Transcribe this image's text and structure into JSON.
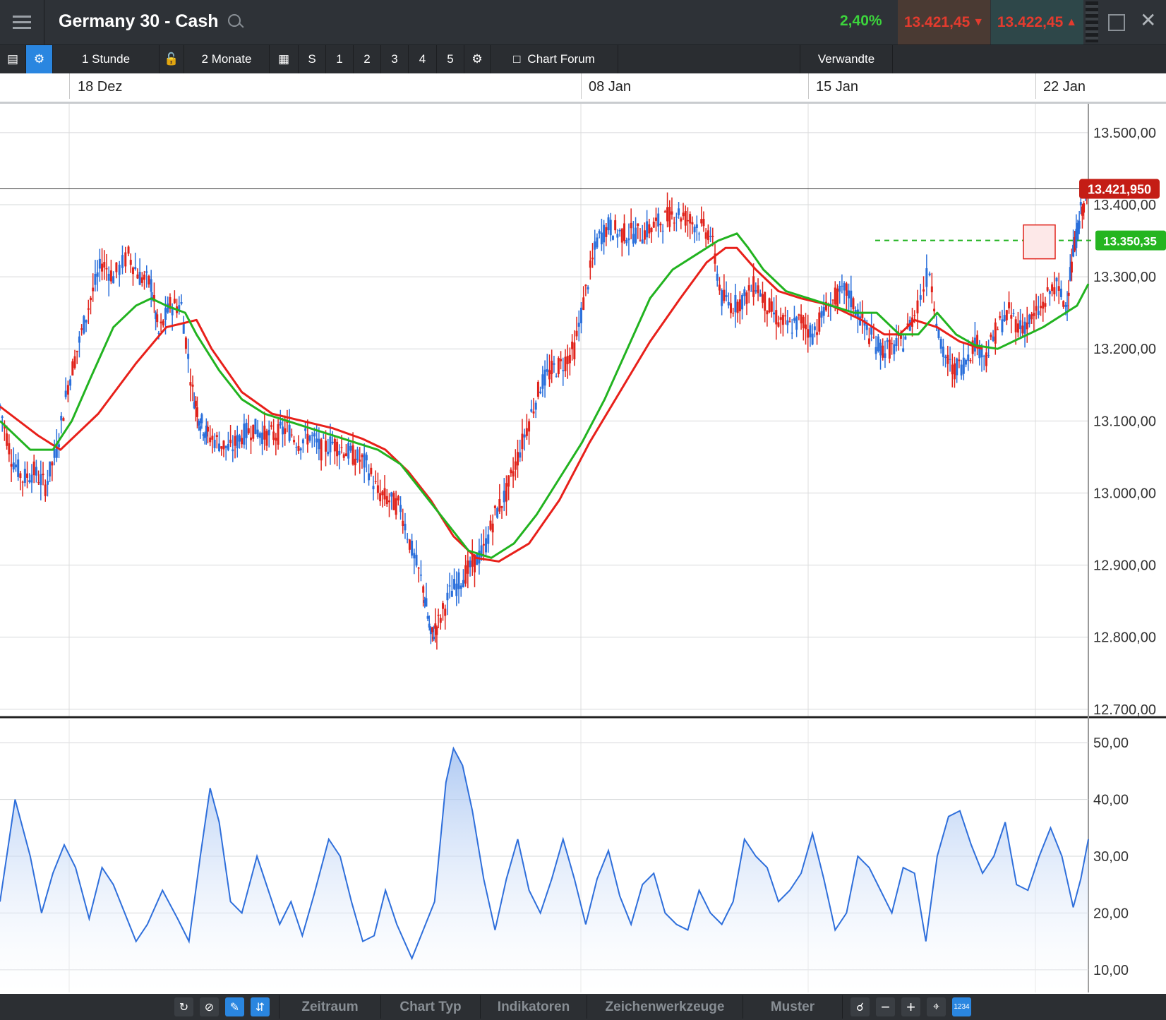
{
  "header": {
    "title": "Germany 30 - Cash",
    "change": "2,40%",
    "bid": "13.421,45",
    "ask": "13.422,45",
    "icons": [
      "menu-icon",
      "search-icon",
      "detach-icon",
      "close-icon"
    ]
  },
  "toolbar": {
    "interval": "1 Stunde",
    "range": "2 Monate",
    "s": "S",
    "n1": "1",
    "n2": "2",
    "n3": "3",
    "n4": "4",
    "n5": "5",
    "forum": "Chart Forum",
    "related": "Verwandte"
  },
  "bottom_bar": {
    "zeitraum": "Zeitraum",
    "charttyp": "Chart Typ",
    "indikatoren": "Indikatoren",
    "zeichen": "Zeichenwerkzeuge",
    "muster": "Muster",
    "numbers": "1234"
  },
  "colors": {
    "up": "#2a6fdb",
    "down": "#e0231b",
    "ma_green": "#22b320",
    "ma_red": "#e8201a",
    "rsi": "#2f6fdb"
  },
  "chart_data": [
    {
      "type": "line",
      "title": "Germany 30 - Cash",
      "x_date_labels": [
        "18 Dez",
        "08 Jan",
        "15 Jan",
        "22 Jan"
      ],
      "yticks": [
        "13.500,00",
        "13.400,00",
        "13.300,00",
        "13.200,00",
        "13.100,00",
        "13.000,00",
        "12.900,00",
        "12.800,00",
        "12.700,00"
      ],
      "ylim": [
        12690,
        13540
      ],
      "last_price_label": "13.421,950",
      "last_price": 13421.95,
      "level_label": "13.350,35",
      "level": 13350.35,
      "price_path": [
        [
          0,
          13120
        ],
        [
          15,
          13050
        ],
        [
          30,
          13020
        ],
        [
          45,
          13030
        ],
        [
          60,
          13010
        ],
        [
          75,
          13060
        ],
        [
          90,
          13150
        ],
        [
          105,
          13210
        ],
        [
          120,
          13270
        ],
        [
          135,
          13320
        ],
        [
          150,
          13300
        ],
        [
          170,
          13330
        ],
        [
          185,
          13300
        ],
        [
          200,
          13290
        ],
        [
          210,
          13220
        ],
        [
          225,
          13260
        ],
        [
          240,
          13260
        ],
        [
          255,
          13140
        ],
        [
          265,
          13100
        ],
        [
          275,
          13080
        ],
        [
          290,
          13070
        ],
        [
          305,
          13060
        ],
        [
          320,
          13080
        ],
        [
          335,
          13090
        ],
        [
          350,
          13080
        ],
        [
          365,
          13080
        ],
        [
          380,
          13090
        ],
        [
          395,
          13070
        ],
        [
          410,
          13080
        ],
        [
          425,
          13060
        ],
        [
          440,
          13070
        ],
        [
          455,
          13060
        ],
        [
          470,
          13050
        ],
        [
          485,
          13040
        ],
        [
          500,
          13000
        ],
        [
          515,
          12990
        ],
        [
          530,
          12980
        ],
        [
          545,
          12920
        ],
        [
          560,
          12870
        ],
        [
          570,
          12800
        ],
        [
          580,
          12820
        ],
        [
          595,
          12860
        ],
        [
          610,
          12880
        ],
        [
          625,
          12900
        ],
        [
          640,
          12920
        ],
        [
          655,
          12970
        ],
        [
          670,
          13000
        ],
        [
          685,
          13050
        ],
        [
          700,
          13100
        ],
        [
          715,
          13150
        ],
        [
          730,
          13170
        ],
        [
          745,
          13180
        ],
        [
          760,
          13200
        ],
        [
          775,
          13280
        ],
        [
          790,
          13350
        ],
        [
          805,
          13370
        ],
        [
          820,
          13360
        ],
        [
          835,
          13360
        ],
        [
          850,
          13360
        ],
        [
          865,
          13370
        ],
        [
          880,
          13380
        ],
        [
          895,
          13390
        ],
        [
          910,
          13380
        ],
        [
          925,
          13370
        ],
        [
          940,
          13360
        ],
        [
          955,
          13270
        ],
        [
          970,
          13260
        ],
        [
          985,
          13270
        ],
        [
          1000,
          13290
        ],
        [
          1015,
          13260
        ],
        [
          1030,
          13240
        ],
        [
          1045,
          13230
        ],
        [
          1060,
          13240
        ],
        [
          1075,
          13220
        ],
        [
          1090,
          13250
        ],
        [
          1105,
          13270
        ],
        [
          1120,
          13280
        ],
        [
          1135,
          13250
        ],
        [
          1150,
          13220
        ],
        [
          1165,
          13200
        ],
        [
          1180,
          13200
        ],
        [
          1195,
          13210
        ],
        [
          1210,
          13250
        ],
        [
          1230,
          13310
        ],
        [
          1245,
          13200
        ],
        [
          1260,
          13170
        ],
        [
          1275,
          13180
        ],
        [
          1290,
          13210
        ],
        [
          1305,
          13190
        ],
        [
          1320,
          13230
        ],
        [
          1335,
          13250
        ],
        [
          1350,
          13230
        ],
        [
          1365,
          13240
        ],
        [
          1380,
          13260
        ],
        [
          1395,
          13290
        ],
        [
          1410,
          13260
        ],
        [
          1420,
          13330
        ],
        [
          1430,
          13390
        ],
        [
          1440,
          13420
        ]
      ],
      "ma_fast": [
        [
          0,
          13100
        ],
        [
          40,
          13060
        ],
        [
          70,
          13060
        ],
        [
          95,
          13100
        ],
        [
          120,
          13160
        ],
        [
          150,
          13230
        ],
        [
          180,
          13260
        ],
        [
          200,
          13270
        ],
        [
          220,
          13260
        ],
        [
          245,
          13250
        ],
        [
          260,
          13220
        ],
        [
          290,
          13170
        ],
        [
          320,
          13130
        ],
        [
          350,
          13110
        ],
        [
          380,
          13100
        ],
        [
          410,
          13090
        ],
        [
          440,
          13080
        ],
        [
          470,
          13070
        ],
        [
          500,
          13060
        ],
        [
          530,
          13040
        ],
        [
          560,
          13000
        ],
        [
          590,
          12960
        ],
        [
          620,
          12920
        ],
        [
          650,
          12910
        ],
        [
          680,
          12930
        ],
        [
          710,
          12970
        ],
        [
          740,
          13020
        ],
        [
          770,
          13070
        ],
        [
          800,
          13130
        ],
        [
          830,
          13200
        ],
        [
          860,
          13270
        ],
        [
          890,
          13310
        ],
        [
          920,
          13330
        ],
        [
          950,
          13350
        ],
        [
          975,
          13360
        ],
        [
          990,
          13340
        ],
        [
          1010,
          13310
        ],
        [
          1040,
          13280
        ],
        [
          1070,
          13270
        ],
        [
          1100,
          13260
        ],
        [
          1130,
          13250
        ],
        [
          1160,
          13250
        ],
        [
          1190,
          13220
        ],
        [
          1215,
          13220
        ],
        [
          1240,
          13250
        ],
        [
          1265,
          13220
        ],
        [
          1290,
          13205
        ],
        [
          1320,
          13200
        ],
        [
          1350,
          13215
        ],
        [
          1380,
          13230
        ],
        [
          1410,
          13250
        ],
        [
          1425,
          13260
        ],
        [
          1440,
          13290
        ]
      ],
      "ma_slow": [
        [
          0,
          13120
        ],
        [
          50,
          13080
        ],
        [
          80,
          13060
        ],
        [
          130,
          13110
        ],
        [
          180,
          13180
        ],
        [
          220,
          13230
        ],
        [
          260,
          13240
        ],
        [
          280,
          13200
        ],
        [
          320,
          13140
        ],
        [
          360,
          13110
        ],
        [
          400,
          13100
        ],
        [
          440,
          13090
        ],
        [
          480,
          13075
        ],
        [
          510,
          13060
        ],
        [
          540,
          13030
        ],
        [
          570,
          12990
        ],
        [
          600,
          12940
        ],
        [
          630,
          12910
        ],
        [
          660,
          12905
        ],
        [
          700,
          12930
        ],
        [
          740,
          12990
        ],
        [
          780,
          13070
        ],
        [
          820,
          13140
        ],
        [
          860,
          13210
        ],
        [
          900,
          13270
        ],
        [
          935,
          13320
        ],
        [
          960,
          13340
        ],
        [
          975,
          13340
        ],
        [
          1000,
          13310
        ],
        [
          1030,
          13280
        ],
        [
          1060,
          13270
        ],
        [
          1100,
          13260
        ],
        [
          1140,
          13240
        ],
        [
          1170,
          13220
        ],
        [
          1190,
          13220
        ],
        [
          1210,
          13240
        ],
        [
          1240,
          13230
        ],
        [
          1270,
          13210
        ],
        [
          1300,
          13200
        ]
      ]
    },
    {
      "type": "area",
      "yticks": [
        "50,00",
        "40,00",
        "30,00",
        "20,00",
        "10,00"
      ],
      "ylim": [
        6,
        54
      ],
      "values": [
        [
          0,
          22
        ],
        [
          20,
          40
        ],
        [
          40,
          30
        ],
        [
          55,
          20
        ],
        [
          70,
          27
        ],
        [
          85,
          32
        ],
        [
          100,
          28
        ],
        [
          118,
          19
        ],
        [
          135,
          28
        ],
        [
          150,
          25
        ],
        [
          165,
          20
        ],
        [
          180,
          15
        ],
        [
          195,
          18
        ],
        [
          215,
          24
        ],
        [
          235,
          19
        ],
        [
          250,
          15
        ],
        [
          265,
          30
        ],
        [
          278,
          42
        ],
        [
          290,
          36
        ],
        [
          305,
          22
        ],
        [
          320,
          20
        ],
        [
          340,
          30
        ],
        [
          355,
          24
        ],
        [
          370,
          18
        ],
        [
          385,
          22
        ],
        [
          400,
          16
        ],
        [
          415,
          23
        ],
        [
          435,
          33
        ],
        [
          450,
          30
        ],
        [
          465,
          22
        ],
        [
          480,
          15
        ],
        [
          495,
          16
        ],
        [
          510,
          24
        ],
        [
          525,
          18
        ],
        [
          545,
          12
        ],
        [
          560,
          17
        ],
        [
          575,
          22
        ],
        [
          590,
          43
        ],
        [
          600,
          49
        ],
        [
          612,
          46
        ],
        [
          625,
          38
        ],
        [
          640,
          26
        ],
        [
          655,
          17
        ],
        [
          670,
          26
        ],
        [
          685,
          33
        ],
        [
          700,
          24
        ],
        [
          715,
          20
        ],
        [
          730,
          26
        ],
        [
          745,
          33
        ],
        [
          760,
          26
        ],
        [
          775,
          18
        ],
        [
          790,
          26
        ],
        [
          805,
          31
        ],
        [
          820,
          23
        ],
        [
          835,
          18
        ],
        [
          850,
          25
        ],
        [
          865,
          27
        ],
        [
          880,
          20
        ],
        [
          895,
          18
        ],
        [
          910,
          17
        ],
        [
          925,
          24
        ],
        [
          940,
          20
        ],
        [
          955,
          18
        ],
        [
          970,
          22
        ],
        [
          985,
          33
        ],
        [
          1000,
          30
        ],
        [
          1015,
          28
        ],
        [
          1030,
          22
        ],
        [
          1045,
          24
        ],
        [
          1060,
          27
        ],
        [
          1075,
          34
        ],
        [
          1090,
          26
        ],
        [
          1105,
          17
        ],
        [
          1120,
          20
        ],
        [
          1135,
          30
        ],
        [
          1150,
          28
        ],
        [
          1165,
          24
        ],
        [
          1180,
          20
        ],
        [
          1195,
          28
        ],
        [
          1210,
          27
        ],
        [
          1225,
          15
        ],
        [
          1240,
          30
        ],
        [
          1255,
          37
        ],
        [
          1270,
          38
        ],
        [
          1285,
          32
        ],
        [
          1300,
          27
        ],
        [
          1315,
          30
        ],
        [
          1330,
          36
        ],
        [
          1345,
          25
        ],
        [
          1360,
          24
        ],
        [
          1375,
          30
        ],
        [
          1390,
          35
        ],
        [
          1405,
          30
        ],
        [
          1420,
          21
        ],
        [
          1430,
          26
        ],
        [
          1440,
          33
        ]
      ]
    }
  ]
}
